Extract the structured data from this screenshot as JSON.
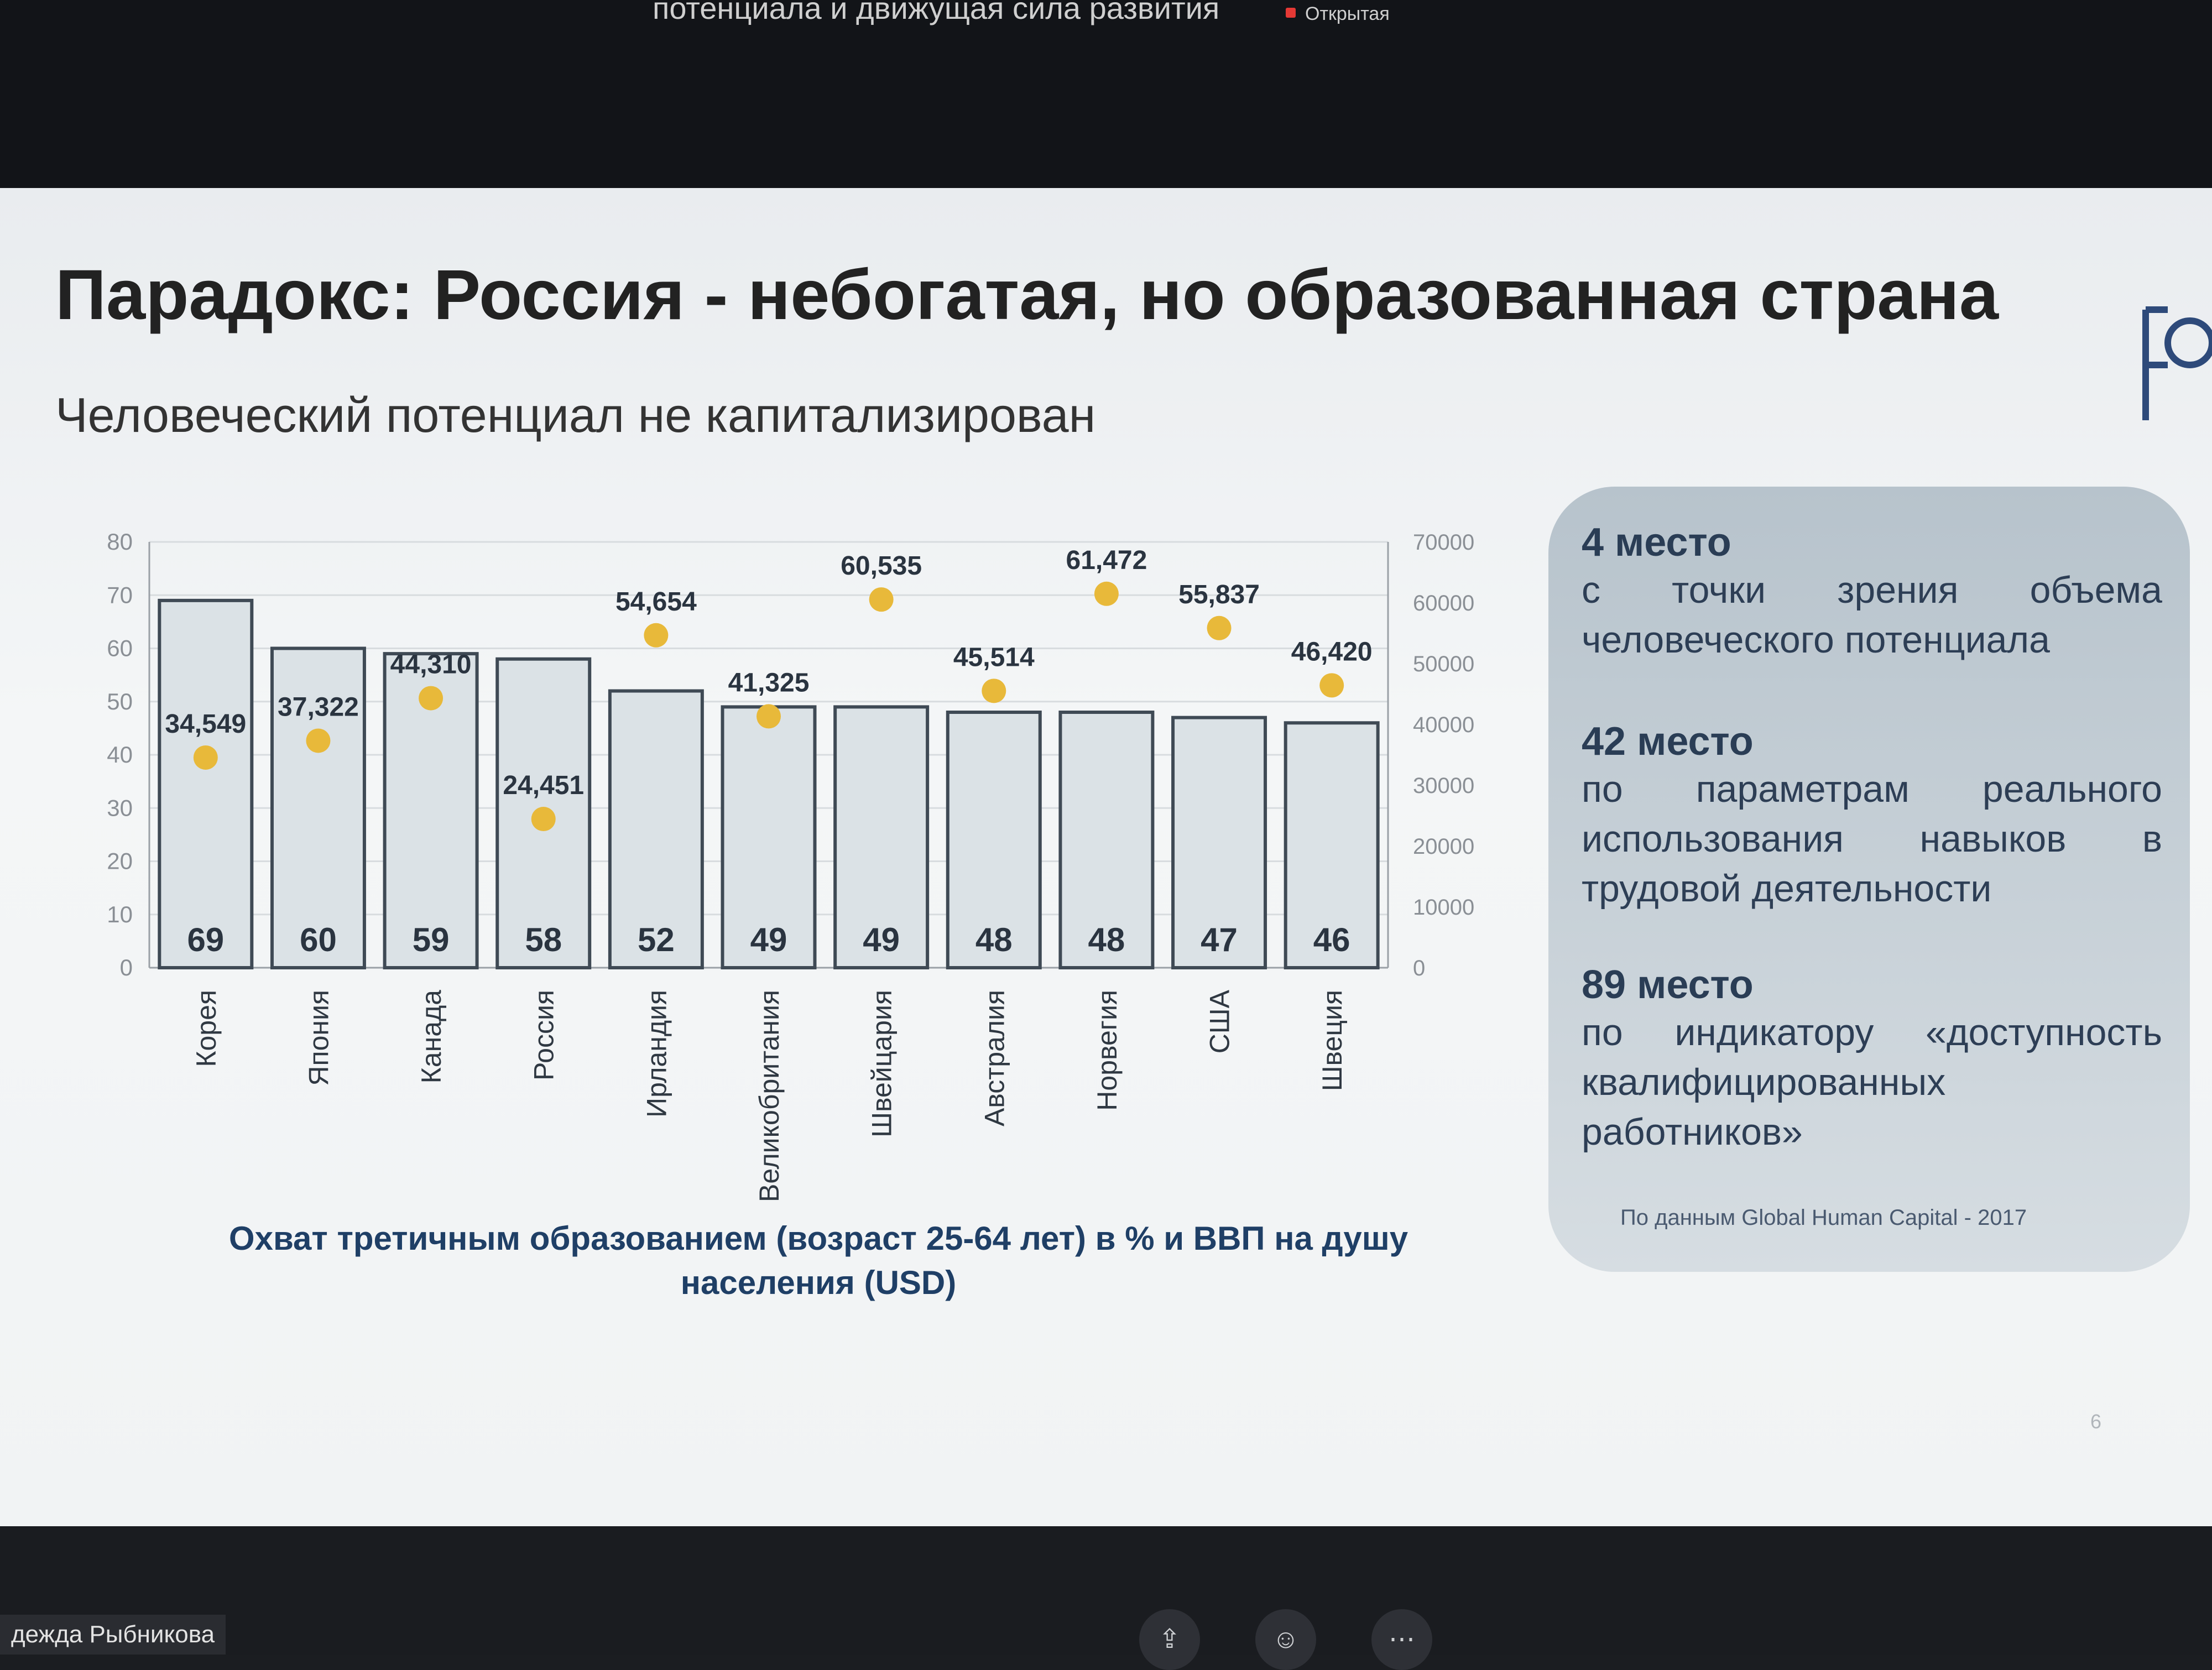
{
  "meeting": {
    "title": "потенциала и движущая сила развития",
    "recording_label": "Открытая"
  },
  "slide": {
    "title": "Парадокс: Россия - небогатая, но образованная страна",
    "subtitle": "Человеческий потенциал не капитализирован",
    "caption": "Охват третичным образованием (возраст 25-64 лет) в % и ВВП на душу населения (USD)",
    "page_number": "6"
  },
  "chart_data": {
    "type": "bar",
    "categories": [
      "Корея",
      "Япония",
      "Канада",
      "Россия",
      "Ирландия",
      "Великобритания",
      "Швейцария",
      "Австралия",
      "Норвегия",
      "США",
      "Швеция"
    ],
    "series": [
      {
        "type": "bar",
        "axis": "left",
        "values": [
          69,
          60,
          59,
          58,
          52,
          49,
          49,
          48,
          48,
          47,
          46
        ],
        "labels": [
          "69",
          "60",
          "59",
          "58",
          "52",
          "49",
          "49",
          "48",
          "48",
          "47",
          "46"
        ]
      },
      {
        "type": "scatter",
        "axis": "right",
        "values": [
          34549,
          37322,
          44310,
          24451,
          54654,
          41325,
          60535,
          45514,
          61472,
          55837,
          46420
        ],
        "labels": [
          "34,549",
          "37,322",
          "44,310",
          "24,451",
          "54,654",
          "41,325",
          "60,535",
          "45,514",
          "61,472",
          "55,837",
          "46,420"
        ],
        "color": "#e8b93a"
      }
    ],
    "left_axis": {
      "min": 0,
      "max": 80,
      "ticks": [
        "0",
        "10",
        "20",
        "30",
        "40",
        "50",
        "60",
        "70",
        "80"
      ]
    },
    "right_axis": {
      "min": 0,
      "max": 70000,
      "ticks": [
        "0",
        "10000",
        "20000",
        "30000",
        "40000",
        "50000",
        "60000",
        "70000"
      ]
    },
    "grid": true
  },
  "card": {
    "blocks": [
      {
        "heading": "4 место",
        "text": "с точки зрения объема человеческого потенциала"
      },
      {
        "heading": "42 место",
        "text": "по параметрам реального использования навыков в трудовой деятельности"
      },
      {
        "heading": "89 место",
        "text": "по индикатору «доступность квалифицированных работников»"
      }
    ],
    "source": "По данным Global Human Capital - 2017"
  },
  "presenter": {
    "name": "дежда Рыбникова"
  },
  "controls": [
    {
      "name": "share-screen-icon",
      "glyph": "⇪"
    },
    {
      "name": "reactions-icon",
      "glyph": "☺"
    },
    {
      "name": "more-icon",
      "glyph": "⋯"
    }
  ]
}
